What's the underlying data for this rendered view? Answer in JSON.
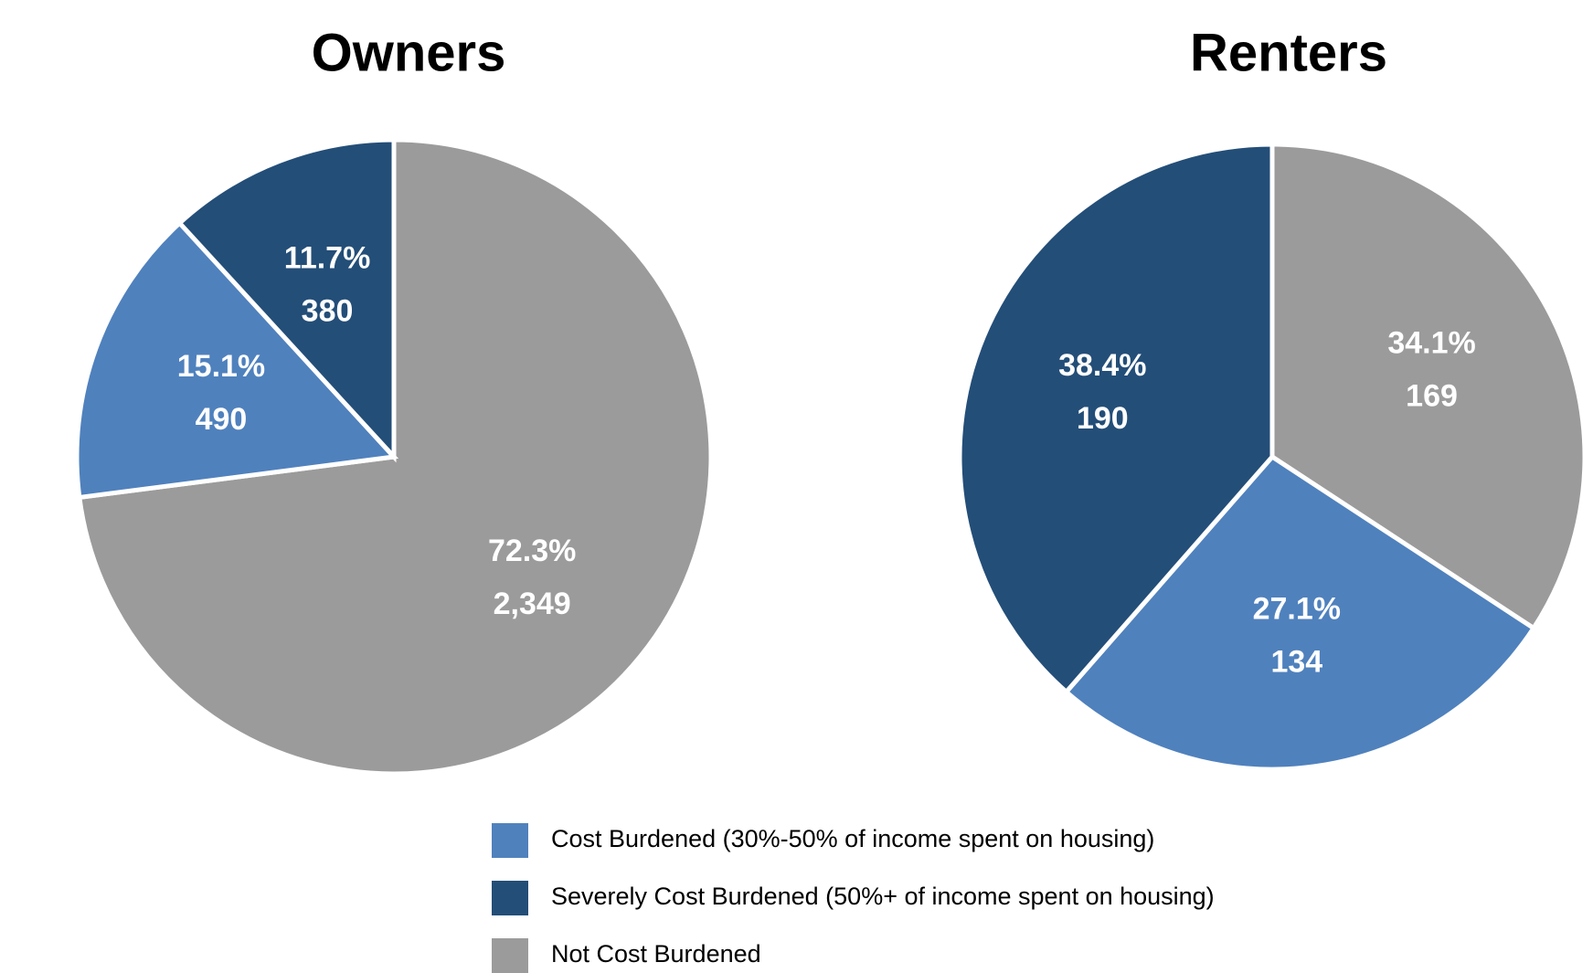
{
  "chart_data": [
    {
      "type": "pie",
      "title": "Owners",
      "categories": [
        "Not Cost Burdened",
        "Cost Burdened (30%-50% of income spent on housing)",
        "Severely Cost Burdened (50%+ of income spent on housing)"
      ],
      "values": [
        72.3,
        15.1,
        11.7
      ],
      "value_labels": [
        "72.3%",
        "15.1%",
        "11.7%"
      ],
      "counts": [
        2349,
        490,
        380
      ],
      "count_labels": [
        "2,349",
        "490",
        "380"
      ],
      "colors": [
        "#9b9b9b",
        "#4f81bd",
        "#234e78"
      ]
    },
    {
      "type": "pie",
      "title": "Renters",
      "categories": [
        "Not Cost Burdened",
        "Cost Burdened (30%-50% of income spent on housing)",
        "Severely Cost Burdened (50%+ of income spent on housing)"
      ],
      "values": [
        34.1,
        27.1,
        38.4
      ],
      "value_labels": [
        "34.1%",
        "27.1%",
        "38.4%"
      ],
      "counts": [
        169,
        134,
        190
      ],
      "count_labels": [
        "169",
        "134",
        "190"
      ],
      "colors": [
        "#9b9b9b",
        "#4f81bd",
        "#234e78"
      ]
    }
  ]
}
